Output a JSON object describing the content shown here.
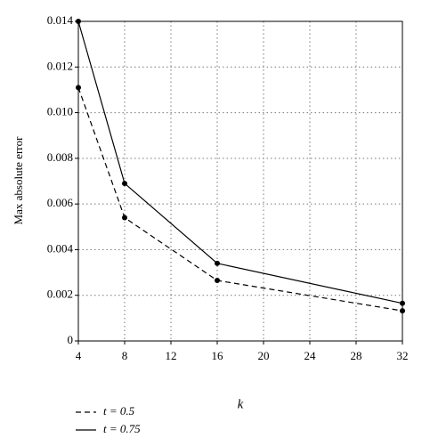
{
  "chart_data": {
    "type": "line",
    "x_label": "k",
    "y_label": "Max absolute error",
    "x": [
      4,
      8,
      16,
      32
    ],
    "series": [
      {
        "name": "t = 0.5",
        "color": "#000000",
        "line_style": "dashed",
        "values": [
          0.0111,
          0.0054,
          0.00265,
          0.00132
        ]
      },
      {
        "name": "t = 0.75",
        "color": "#000000",
        "line_style": "solid",
        "values": [
          0.014,
          0.0069,
          0.0034,
          0.00165
        ]
      }
    ],
    "xlim": [
      4,
      32
    ],
    "xticks": [
      4,
      8,
      12,
      16,
      20,
      24,
      28,
      32
    ],
    "ylim": [
      0,
      0.014
    ],
    "yticks": [
      0,
      0.002,
      0.004,
      0.006,
      0.008,
      {
        "value": 0.01,
        "label": "0.010"
      },
      0.012,
      0.014
    ],
    "grid": true,
    "legend": "bottom-left"
  }
}
